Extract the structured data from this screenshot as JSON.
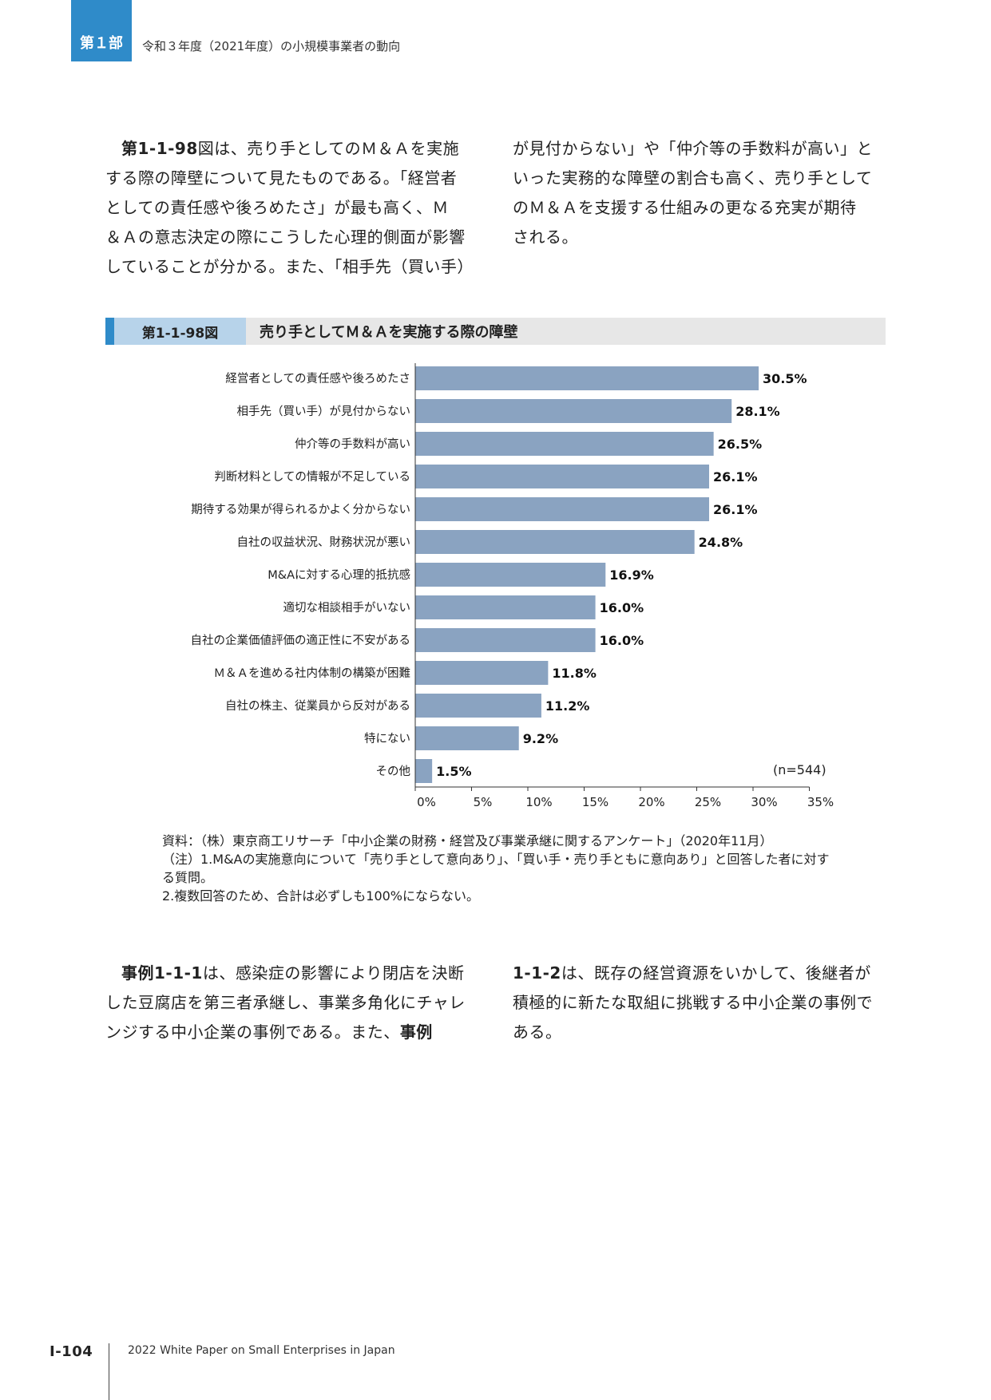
{
  "header": {
    "part_label": "第１部",
    "title": "令和３年度（2021年度）の小規模事業者の動向"
  },
  "intro": {
    "left_lines": [
      {
        "bold": "第1-1-98",
        "text": "図は、売り手としてのＭ＆Ａを実施"
      },
      {
        "bold": "",
        "text": "する際の障壁について見たものである。「経営者"
      },
      {
        "bold": "",
        "text": "としての責任感や後ろめたさ」が最も高く、Ｍ"
      },
      {
        "bold": "",
        "text": "＆Ａの意志決定の際にこうした心理的側面が影響"
      },
      {
        "bold": "",
        "text": "していることが分かる。また、「相手先（買い手）"
      }
    ],
    "right_lines": [
      "が見付からない」や「仲介等の手数料が高い」と",
      "いった実務的な障壁の割合も高く、売り手として",
      "のＭ＆Ａを支援する仕組みの更なる充実が期待",
      "される。"
    ]
  },
  "figure": {
    "number": "第1-1-98図",
    "title": "売り手としてＭ＆Ａを実施する際の障壁"
  },
  "chart_data": {
    "type": "bar",
    "orientation": "horizontal",
    "categories": [
      "経営者としての責任感や後ろめたさ",
      "相手先（買い手）が見付からない",
      "仲介等の手数料が高い",
      "判断材料としての情報が不足している",
      "期待する効果が得られるかよく分からない",
      "自社の収益状況、財務状況が悪い",
      "M&Aに対する心理的抵抗感",
      "適切な相談相手がいない",
      "自社の企業価値評価の適正性に不安がある",
      "Ｍ＆Ａを進める社内体制の構築が困難",
      "自社の株主、従業員から反対がある",
      "特にない",
      "その他"
    ],
    "values": [
      30.5,
      28.1,
      26.5,
      26.1,
      26.1,
      24.8,
      16.9,
      16.0,
      16.0,
      11.8,
      11.2,
      9.2,
      1.5
    ],
    "value_labels": [
      "30.5%",
      "28.1%",
      "26.5%",
      "26.1%",
      "26.1%",
      "24.8%",
      "16.9%",
      "16.0%",
      "16.0%",
      "11.8%",
      "11.2%",
      "9.2%",
      "1.5%"
    ],
    "xlim": [
      0,
      35
    ],
    "xticks": [
      "0%",
      "5%",
      "10%",
      "15%",
      "20%",
      "25%",
      "30%",
      "35%"
    ],
    "bar_color": "#8aa3c1",
    "n_label": "(n=544)",
    "grid": false
  },
  "notes": {
    "source": "資料：（株）東京商工リサーチ「中小企業の財務・経営及び事業承継に関するアンケート」（2020年11月）",
    "note1_line1": "（注）1.M&Aの実施意向について「売り手として意向あり」、「買い手・売り手ともに意向あり」と回答した者に対す",
    "note1_line2": "る質問。",
    "note2": "2.複数回答のため、合計は必ずしも100%にならない。"
  },
  "closing": {
    "left_lines": [
      {
        "bold": "事例1-1-1",
        "text": "は、感染症の影響により閉店を決断"
      },
      {
        "bold": "",
        "text": "した豆腐店を第三者承継し、事業多角化にチャレ"
      },
      {
        "bold": "",
        "text": "ンジする中小企業の事例である。また、",
        "bold_tail": "事例"
      }
    ],
    "right_lines": [
      {
        "bold": "1-1-2",
        "text": "は、既存の経営資源をいかして、後継者が"
      },
      {
        "bold": "",
        "text": "積極的に新たな取組に挑戦する中小企業の事例で"
      },
      {
        "bold": "",
        "text": "ある。"
      }
    ]
  },
  "footer": {
    "page_number": "I-104",
    "publication": "2022 White Paper on Small Enterprises in Japan"
  },
  "colors": {
    "accent_blue": "#2f8bc9",
    "fig_number_bg": "#b7d3ea",
    "fig_bar_bg": "#e7e7e7"
  }
}
